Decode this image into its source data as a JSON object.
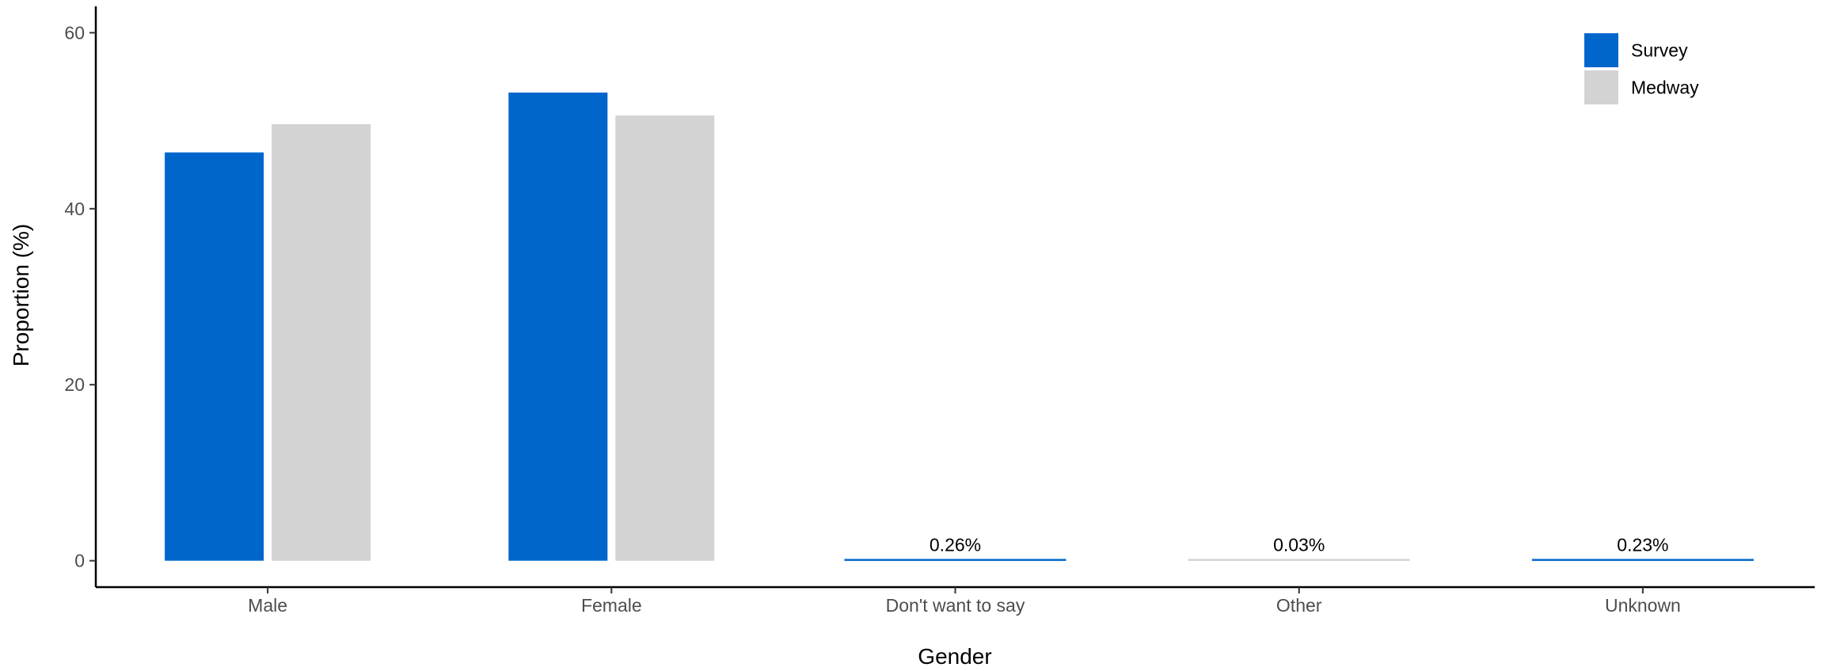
{
  "chart_data": {
    "type": "bar",
    "xlabel": "Gender",
    "ylabel": "Proportion (%)",
    "ylim": [
      -3,
      63
    ],
    "yticks": [
      0,
      20,
      40,
      60
    ],
    "grid": false,
    "legend_position": "top-right",
    "categories": [
      "Male",
      "Female",
      "Don't want to say",
      "Other",
      "Unknown"
    ],
    "series": [
      {
        "name": "Survey",
        "color": "#0066CC",
        "values": [
          46.4,
          53.2,
          0.26,
          0,
          0.23
        ]
      },
      {
        "name": "Medway",
        "color": "#D3D3D3",
        "values": [
          49.6,
          50.6,
          null,
          0.03,
          null
        ]
      }
    ],
    "annotations": [
      {
        "category": "Don't want to say",
        "text": "0.26%"
      },
      {
        "category": "Other",
        "text": "0.03%"
      },
      {
        "category": "Unknown",
        "text": "0.23%"
      }
    ]
  }
}
